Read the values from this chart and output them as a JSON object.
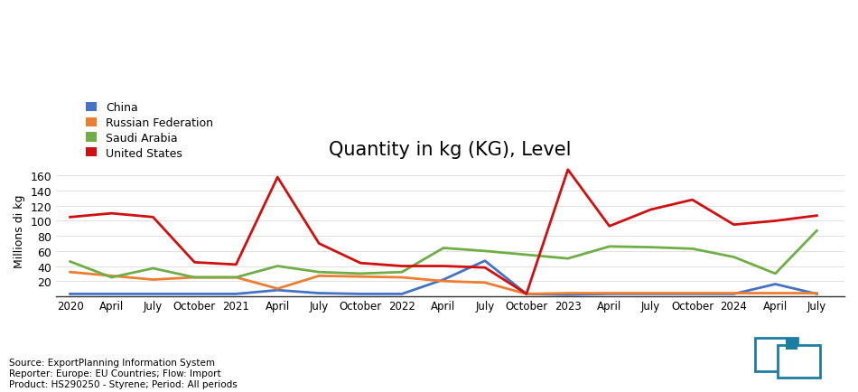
{
  "title": "Quantity in kg (KG), Level",
  "ylabel": "Millions di kg",
  "china_color": "#4472C4",
  "russia_color": "#ED7D31",
  "saudi_color": "#70AD47",
  "us_color": "#D01010",
  "china_x": [
    0,
    3,
    6,
    9,
    12,
    15,
    18,
    21,
    24,
    27,
    30,
    33,
    36,
    39,
    42,
    45,
    48,
    51,
    54
  ],
  "china_y": [
    3,
    3,
    3,
    3,
    3,
    8,
    4,
    3,
    3,
    22,
    47,
    3,
    2,
    3,
    3,
    3,
    3,
    16,
    3
  ],
  "russia_x": [
    0,
    3,
    6,
    9,
    12,
    15,
    18,
    21,
    24,
    27,
    30,
    33,
    36,
    39,
    42,
    45,
    48,
    51,
    54
  ],
  "russia_y": [
    32,
    27,
    22,
    25,
    25,
    10,
    27,
    26,
    25,
    20,
    18,
    3,
    4,
    4,
    4,
    4,
    4,
    4,
    4
  ],
  "saudi_x": [
    0,
    3,
    6,
    9,
    12,
    15,
    18,
    21,
    24,
    27,
    30,
    33,
    36,
    39,
    42,
    45,
    48,
    51,
    54
  ],
  "saudi_y": [
    46,
    25,
    37,
    25,
    25,
    40,
    32,
    30,
    32,
    64,
    60,
    55,
    50,
    66,
    65,
    63,
    52,
    30,
    87
  ],
  "us_x": [
    0,
    3,
    6,
    9,
    12,
    15,
    18,
    21,
    24,
    27,
    30,
    33,
    36,
    39,
    42,
    45,
    48,
    51,
    54
  ],
  "us_y": [
    105,
    110,
    105,
    45,
    42,
    158,
    70,
    44,
    40,
    40,
    38,
    3,
    168,
    93,
    115,
    128,
    95,
    100,
    107
  ],
  "x_tick_positions": [
    0,
    3,
    6,
    9,
    12,
    15,
    18,
    21,
    24,
    27,
    30,
    33,
    36,
    39,
    42,
    45,
    48,
    51,
    54
  ],
  "x_tick_labels": [
    "2020",
    "April",
    "July",
    "October",
    "2021",
    "April",
    "July",
    "October",
    "2022",
    "April",
    "July",
    "October",
    "2023",
    "April",
    "July",
    "October",
    "2024",
    "April",
    "July"
  ],
  "ylim": [
    0,
    175
  ],
  "yticks": [
    20,
    40,
    60,
    80,
    100,
    120,
    140,
    160
  ],
  "xlim": [
    -1,
    56
  ],
  "legend_labels": [
    "China",
    "Russian Federation",
    "Saudi Arabia",
    "United States"
  ],
  "legend_colors": [
    "#4472C4",
    "#ED7D31",
    "#70AD47",
    "#D01010"
  ],
  "source_text": "Source: ExportPlanning Information System\nReporter: Europe: EU Countries; Flow: Import\nProduct: HS290250 - Styrene; Period: All periods",
  "icon_color": "#1B7EA1"
}
